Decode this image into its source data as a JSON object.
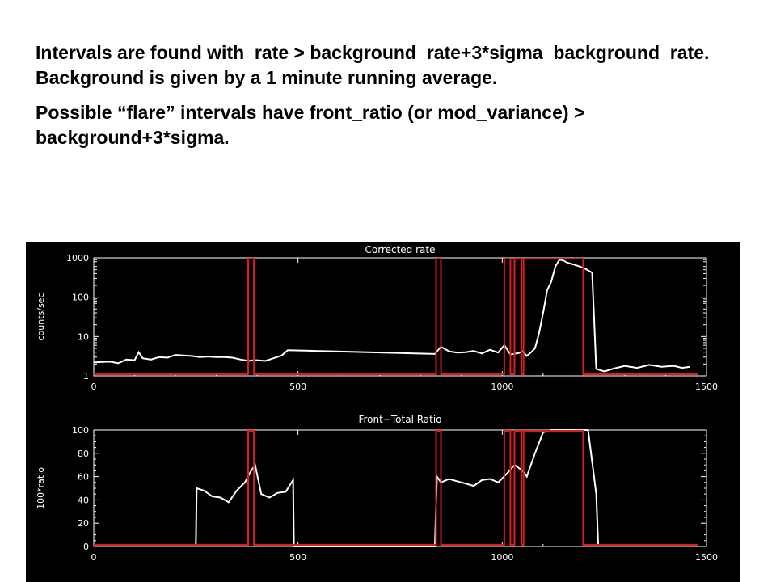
{
  "slide": {
    "paragraphs": [
      "Intervals are found with  rate > background_rate+3*sigma_background_rate.  Background is given by a 1 minute running average.",
      "Possible “flare” intervals have front_ratio (or mod_variance) > background+3*sigma."
    ]
  },
  "colors": {
    "panel_background": "#000000",
    "data_trace": "#ffffff",
    "interval_marker": "#e01b1b",
    "axes": "#ffffff"
  },
  "chart_data": [
    {
      "type": "line",
      "title": "Corrected rate",
      "xlabel": "",
      "ylabel": "counts/sec",
      "xlim": [
        0,
        1500
      ],
      "ylim": [
        1,
        1000
      ],
      "yscale": "log",
      "xticks": [
        0,
        500,
        1000,
        1500
      ],
      "yticks": [
        1,
        10,
        100,
        1000
      ],
      "xtick_labels": [
        "0",
        "500",
        "1000",
        "1500"
      ],
      "ytick_labels": [
        "1",
        "10",
        "100",
        "1000"
      ],
      "grid": false,
      "series": [
        {
          "color": "#ffffff",
          "x": [
            0,
            40,
            60,
            80,
            100,
            110,
            120,
            140,
            160,
            180,
            200,
            220,
            240,
            260,
            280,
            300,
            320,
            340,
            360,
            380,
            390,
            400,
            420,
            440,
            460,
            475,
            835,
            850,
            870,
            890,
            910,
            930,
            950,
            970,
            990,
            1005,
            1020,
            1040,
            1050,
            1060,
            1070,
            1080,
            1090,
            1100,
            1110,
            1120,
            1130,
            1140,
            1150,
            1160,
            1170,
            1180,
            1190,
            1200,
            1210,
            1220,
            1230,
            1240,
            1250,
            1270,
            1300,
            1330,
            1360,
            1390,
            1420,
            1440,
            1460
          ],
          "y": [
            2.2,
            2.3,
            2.1,
            2.6,
            2.5,
            4.0,
            2.8,
            2.6,
            3.0,
            2.9,
            3.4,
            3.3,
            3.2,
            3.0,
            3.1,
            3.0,
            3.0,
            2.9,
            2.6,
            2.4,
            2.5,
            2.5,
            2.4,
            2.8,
            3.3,
            4.5,
            3.6,
            5.5,
            4.2,
            3.9,
            4.0,
            4.3,
            3.7,
            4.6,
            3.9,
            6.0,
            3.5,
            3.8,
            4.2,
            3.2,
            3.9,
            5.0,
            12,
            40,
            150,
            250,
            600,
            900,
            850,
            750,
            700,
            650,
            600,
            550,
            480,
            420,
            1.5,
            1.4,
            1.3,
            1.5,
            1.8,
            1.6,
            1.9,
            1.7,
            1.8,
            1.6,
            1.7
          ]
        }
      ],
      "intervals": [
        [
          378,
          392
        ],
        [
          838,
          850
        ],
        [
          1005,
          1020
        ],
        [
          1030,
          1047
        ],
        [
          1052,
          1198
        ]
      ]
    },
    {
      "type": "line",
      "title": "Front−Total Ratio",
      "xlabel": "",
      "ylabel": "100*ratio",
      "xlim": [
        0,
        1500
      ],
      "ylim": [
        0,
        100
      ],
      "yscale": "linear",
      "xticks": [
        0,
        500,
        1000,
        1500
      ],
      "yticks": [
        0,
        20,
        40,
        60,
        80,
        100
      ],
      "xtick_labels": [
        "0",
        "500",
        "1000",
        "1500"
      ],
      "ytick_labels": [
        "0",
        "20",
        "40",
        "60",
        "80",
        "100"
      ],
      "grid": false,
      "series": [
        {
          "color": "#ffffff",
          "x": [
            250,
            252,
            270,
            290,
            310,
            330,
            350,
            370,
            385,
            395,
            410,
            430,
            450,
            470,
            488,
            490,
            835,
            840,
            850,
            870,
            890,
            910,
            930,
            950,
            970,
            990,
            1010,
            1030,
            1050,
            1060,
            1080,
            1100,
            1120,
            1140,
            1160,
            1180,
            1200,
            1210,
            1230,
            1235
          ],
          "y": [
            0,
            50,
            48,
            43,
            42,
            38,
            48,
            55,
            65,
            70,
            45,
            42,
            46,
            47,
            57,
            0,
            0,
            60,
            55,
            58,
            56,
            54,
            52,
            57,
            58,
            55,
            62,
            70,
            65,
            60,
            80,
            98,
            100,
            100,
            100,
            100,
            100,
            100,
            45,
            0
          ]
        }
      ],
      "intervals": [
        [
          378,
          392
        ],
        [
          838,
          850
        ],
        [
          1005,
          1020
        ],
        [
          1030,
          1047
        ],
        [
          1052,
          1198
        ]
      ]
    }
  ]
}
